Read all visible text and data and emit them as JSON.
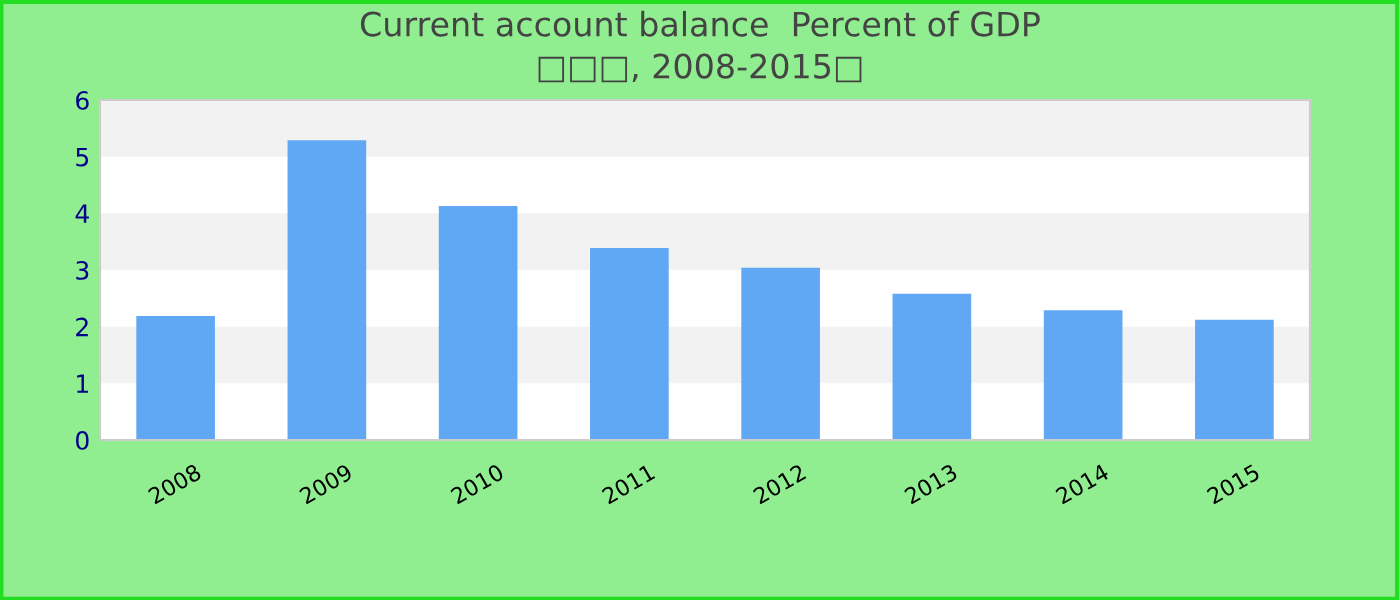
{
  "chart_data": {
    "type": "bar",
    "title": "Current account balance  Percent of GDP",
    "subtitle": "□□□, 2008-2015□",
    "categories": [
      "2008",
      "2009",
      "2010",
      "2011",
      "2012",
      "2013",
      "2014",
      "2015"
    ],
    "values": [
      2.19,
      5.29,
      4.13,
      3.39,
      3.04,
      2.58,
      2.29,
      2.12
    ],
    "color": "#61a8f4",
    "ylim": [
      0,
      6
    ],
    "yticks": [
      0,
      1,
      2,
      3,
      4,
      5,
      6
    ],
    "bands": [
      {
        "axis": "y",
        "from": 1,
        "to": 2,
        "color": "#f2f2f2"
      },
      {
        "axis": "y",
        "from": 3,
        "to": 4,
        "color": "#f2f2f2"
      },
      {
        "axis": "y",
        "from": 5,
        "to": 6,
        "color": "#f2f2f2"
      }
    ]
  }
}
